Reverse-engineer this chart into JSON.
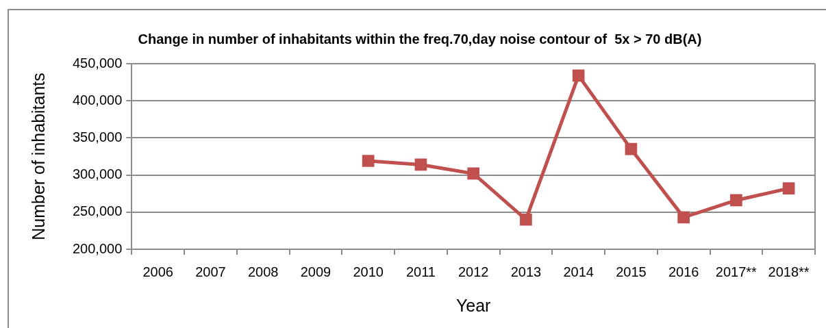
{
  "chart_data": {
    "type": "line",
    "title": "Change in number of inhabitants within the freq.70,day noise contour of  5x > 70 dB(A)",
    "xlabel": "Year",
    "ylabel": "Number of inhabitants",
    "categories": [
      "2006",
      "2007",
      "2008",
      "2009",
      "2010",
      "2011",
      "2012",
      "2013",
      "2014",
      "2015",
      "2016",
      "2017**",
      "2018**"
    ],
    "series": [
      {
        "color": "#c0504d",
        "values": [
          null,
          null,
          null,
          null,
          319000,
          314000,
          302000,
          240000,
          434000,
          335000,
          243000,
          266000,
          282000
        ]
      }
    ],
    "ylim": [
      200000,
      450000
    ],
    "yticks": [
      {
        "value": 200000,
        "label": "200,000"
      },
      {
        "value": 250000,
        "label": "250,000"
      },
      {
        "value": 300000,
        "label": "300,000"
      },
      {
        "value": 350000,
        "label": "350,000"
      },
      {
        "value": 400000,
        "label": "400,000"
      },
      {
        "value": 450000,
        "label": "450,000"
      }
    ],
    "grid": "y",
    "legend": false,
    "marker": "square",
    "line_style": "solid"
  }
}
